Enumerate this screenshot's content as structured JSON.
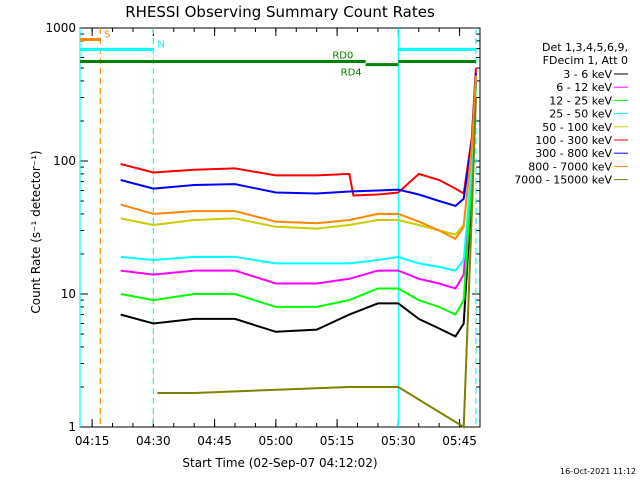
{
  "chart_data": {
    "type": "line",
    "title": "RHESSI Observing Summary Count Rates",
    "xlabel": "Start Time (02-Sep-07 04:12:02)",
    "ylabel": "Count Rate (s⁻¹ detector⁻¹)",
    "y_scale": "log",
    "ylim": [
      1,
      1000
    ],
    "xlim": [
      "04:12:02",
      "05:50:00"
    ],
    "x_ticks": [
      "04:15",
      "04:30",
      "04:45",
      "05:00",
      "05:15",
      "05:30",
      "05:45"
    ],
    "y_ticks": [
      "1",
      "10",
      "100",
      "1000"
    ],
    "legend_header": [
      "Det 1,3,4,5,6,9,",
      "FDecim 1, Att 0"
    ],
    "footer": "16-Oct-2021 11:12",
    "series": [
      {
        "name": "3 - 6 keV",
        "color": "#000000",
        "x": [
          "04:22",
          "04:30",
          "04:40",
          "04:50",
          "05:00",
          "05:10",
          "05:18",
          "05:25",
          "05:30",
          "05:35",
          "05:40",
          "05:44",
          "05:46",
          "05:48",
          "05:49"
        ],
        "values": [
          7,
          6,
          6.5,
          6.5,
          5.2,
          5.4,
          7,
          8.5,
          8.5,
          6.5,
          5.5,
          4.8,
          6,
          60,
          400
        ]
      },
      {
        "name": "6 - 12 keV",
        "color": "#ff00ff",
        "x": [
          "04:22",
          "04:30",
          "04:40",
          "04:50",
          "05:00",
          "05:10",
          "05:18",
          "05:25",
          "05:30",
          "05:35",
          "05:40",
          "05:44",
          "05:46",
          "05:48",
          "05:49"
        ],
        "values": [
          15,
          14,
          15,
          15,
          12,
          12,
          13,
          15,
          15,
          13,
          12,
          11,
          14,
          80,
          430
        ]
      },
      {
        "name": "12 - 25 keV",
        "color": "#00ff00",
        "x": [
          "04:22",
          "04:30",
          "04:40",
          "04:50",
          "05:00",
          "05:10",
          "05:18",
          "05:25",
          "05:30",
          "05:35",
          "05:40",
          "05:44",
          "05:46",
          "05:48",
          "05:49"
        ],
        "values": [
          10,
          9,
          10,
          10,
          8,
          8,
          9,
          11,
          11,
          9,
          8,
          7,
          9,
          70,
          380
        ]
      },
      {
        "name": "25 - 50 keV",
        "color": "#00ffff",
        "x": [
          "04:22",
          "04:30",
          "04:40",
          "04:50",
          "05:00",
          "05:10",
          "05:18",
          "05:25",
          "05:30",
          "05:35",
          "05:40",
          "05:44",
          "05:46",
          "05:48",
          "05:49"
        ],
        "values": [
          19,
          18,
          19,
          19,
          17,
          17,
          17,
          18,
          19,
          17,
          16,
          15,
          18,
          90,
          420
        ]
      },
      {
        "name": "50 - 100 keV",
        "color": "#cccc00",
        "x": [
          "04:22",
          "04:30",
          "04:40",
          "04:50",
          "05:00",
          "05:10",
          "05:18",
          "05:25",
          "05:30",
          "05:35",
          "05:40",
          "05:44",
          "05:46",
          "05:48",
          "05:49"
        ],
        "values": [
          37,
          33,
          36,
          37,
          32,
          31,
          33,
          36,
          36,
          33,
          30,
          28,
          33,
          120,
          450
        ]
      },
      {
        "name": "100 - 300 keV",
        "color": "#ff0000",
        "x": [
          "04:22",
          "04:30",
          "04:40",
          "04:50",
          "05:00",
          "05:10",
          "05:18",
          "05:19",
          "05:25",
          "05:30",
          "05:35",
          "05:40",
          "05:44",
          "05:46",
          "05:48",
          "05:49"
        ],
        "values": [
          95,
          82,
          86,
          88,
          78,
          78,
          80,
          55,
          56,
          58,
          80,
          72,
          62,
          57,
          150,
          500
        ]
      },
      {
        "name": "300 - 800 keV",
        "color": "#0000ff",
        "x": [
          "04:22",
          "04:30",
          "04:40",
          "04:50",
          "05:00",
          "05:10",
          "05:18",
          "05:25",
          "05:30",
          "05:35",
          "05:40",
          "05:44",
          "05:46",
          "05:48",
          "05:49"
        ],
        "values": [
          72,
          62,
          66,
          67,
          58,
          57,
          59,
          60,
          61,
          56,
          50,
          46,
          52,
          140,
          460
        ]
      },
      {
        "name": "800 - 7000 keV",
        "color": "#ff8800",
        "x": [
          "04:22",
          "04:30",
          "04:40",
          "04:50",
          "05:00",
          "05:10",
          "05:18",
          "05:25",
          "05:30",
          "05:35",
          "05:40",
          "05:44",
          "05:46",
          "05:48",
          "05:49"
        ],
        "values": [
          47,
          40,
          42,
          42,
          35,
          34,
          36,
          40,
          40,
          35,
          30,
          26,
          32,
          130,
          440
        ]
      },
      {
        "name": "7000 - 15000 keV",
        "color": "#808000",
        "x": [
          "04:31",
          "04:40",
          "05:18",
          "05:30",
          "05:46",
          "05:48",
          "05:49"
        ],
        "values": [
          1.8,
          1.8,
          2,
          2,
          1,
          40,
          300
        ]
      }
    ],
    "bars": [
      {
        "label": "S",
        "color": "#ff8800",
        "start": "04:12:02",
        "end": "04:17",
        "level": 820
      },
      {
        "label": "N",
        "color": "#00ffff",
        "start": "04:12:02",
        "end": "04:30",
        "level": 690
      },
      {
        "label": "N",
        "color": "#00ffff",
        "start": "05:30",
        "end": "05:49",
        "level": 690
      },
      {
        "label": "RD0",
        "color": "#008000",
        "start": "04:12:02",
        "end": "05:22",
        "level": 560
      },
      {
        "label": "RD4",
        "color": "#008000",
        "start": "05:22",
        "end": "05:30",
        "level": 530
      },
      {
        "label": "",
        "color": "#008000",
        "start": "05:30",
        "end": "05:49",
        "level": 560
      }
    ],
    "vlines": [
      {
        "time": "04:12:02",
        "color": "#00ffff",
        "dashed": false
      },
      {
        "time": "04:17",
        "color": "#ff8800",
        "dashed": true
      },
      {
        "time": "04:30",
        "color": "#00ffff",
        "dashed": true
      },
      {
        "time": "05:30",
        "color": "#00ffff",
        "dashed": false
      },
      {
        "time": "05:49",
        "color": "#00ffff",
        "dashed": true
      }
    ],
    "grid": false,
    "legend_position": "right"
  }
}
